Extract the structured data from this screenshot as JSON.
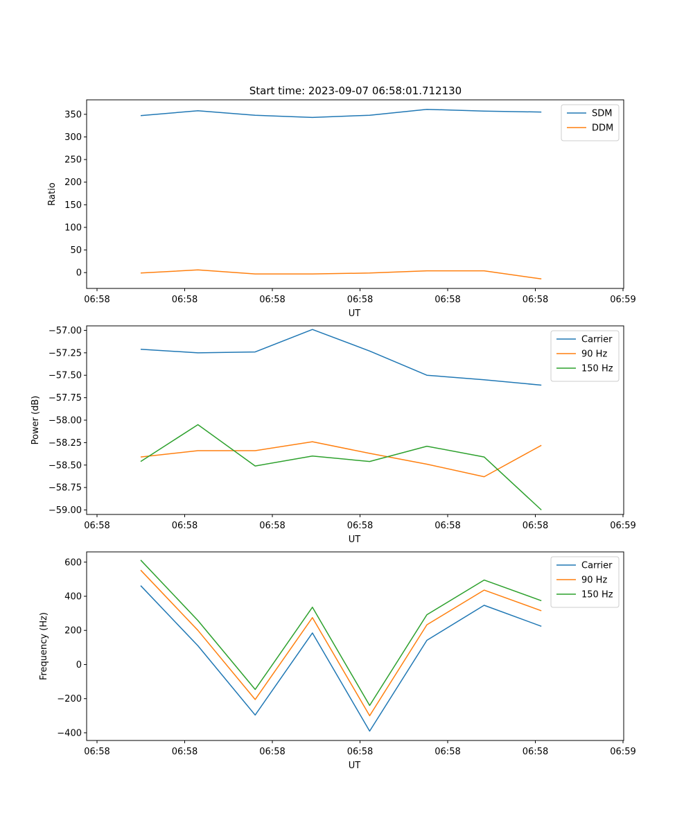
{
  "figure_title": "Start time: 2023-09-07 06:58:01.712130",
  "chart_data": [
    {
      "type": "line",
      "title": "Start time: 2023-09-07 06:58:01.712130",
      "xlabel": "UT",
      "ylabel": "Ratio",
      "x_tick_labels": [
        "06:58",
        "06:58",
        "06:58",
        "06:58",
        "06:58",
        "06:58",
        "06:59"
      ],
      "x": [
        1,
        2,
        3,
        4,
        5,
        6,
        7,
        8
      ],
      "xlim": [
        0.28,
        9.37
      ],
      "ylim": [
        -35,
        382
      ],
      "y_ticks": [
        0,
        50,
        100,
        150,
        200,
        250,
        300,
        350
      ],
      "y_tick_labels": [
        "0",
        "50",
        "100",
        "150",
        "200",
        "250",
        "300",
        "350"
      ],
      "legend_position": "top-right",
      "series": [
        {
          "name": "SDM",
          "color": "#1f77b4",
          "values": [
            347,
            358,
            348,
            343,
            348,
            361,
            357,
            355
          ]
        },
        {
          "name": "DDM",
          "color": "#ff7f0e",
          "values": [
            -1,
            6,
            -3,
            -3,
            -1,
            4,
            4,
            -14
          ]
        }
      ]
    },
    {
      "type": "line",
      "title": "",
      "xlabel": "UT",
      "ylabel": "Power (dB)",
      "x_tick_labels": [
        "06:58",
        "06:58",
        "06:58",
        "06:58",
        "06:58",
        "06:58",
        "06:59"
      ],
      "x": [
        1,
        2,
        3,
        4,
        5,
        6,
        7,
        8
      ],
      "xlim": [
        0.28,
        9.37
      ],
      "ylim": [
        -59.05,
        -56.95
      ],
      "y_ticks": [
        -57.0,
        -57.25,
        -57.5,
        -57.75,
        -58.0,
        -58.25,
        -58.5,
        -58.75,
        -59.0
      ],
      "y_tick_labels": [
        "−57.00",
        "−57.25",
        "−57.50",
        "−57.75",
        "−58.00",
        "−58.25",
        "−58.50",
        "−58.75",
        "−59.00"
      ],
      "legend_position": "top-right",
      "series": [
        {
          "name": "Carrier",
          "color": "#1f77b4",
          "values": [
            -57.21,
            -57.25,
            -57.24,
            -56.99,
            -57.23,
            -57.5,
            -57.55,
            -57.61
          ]
        },
        {
          "name": "90 Hz",
          "color": "#ff7f0e",
          "values": [
            -58.41,
            -58.34,
            -58.34,
            -58.24,
            -58.37,
            -58.49,
            -58.63,
            -58.28
          ]
        },
        {
          "name": "150 Hz",
          "color": "#2ca02c",
          "values": [
            -58.46,
            -58.05,
            -58.51,
            -58.4,
            -58.46,
            -58.29,
            -58.41,
            -59.0
          ]
        }
      ]
    },
    {
      "type": "line",
      "title": "",
      "xlabel": "UT",
      "ylabel": "Frequency (Hz)",
      "x_tick_labels": [
        "06:58",
        "06:58",
        "06:58",
        "06:58",
        "06:58",
        "06:58",
        "06:59"
      ],
      "x": [
        1,
        2,
        3,
        4,
        5,
        6,
        7,
        8
      ],
      "xlim": [
        0.28,
        9.37
      ],
      "ylim": [
        -445,
        660
      ],
      "y_ticks": [
        -400,
        -200,
        0,
        200,
        400,
        600
      ],
      "y_tick_labels": [
        "−400",
        "−200",
        "0",
        "200",
        "400",
        "600"
      ],
      "legend_position": "top-right",
      "series": [
        {
          "name": "Carrier",
          "color": "#1f77b4",
          "values": [
            462,
            110,
            -296,
            185,
            -390,
            142,
            347,
            224
          ]
        },
        {
          "name": "90 Hz",
          "color": "#ff7f0e",
          "values": [
            553,
            200,
            -205,
            275,
            -300,
            233,
            436,
            315
          ]
        },
        {
          "name": "150 Hz",
          "color": "#2ca02c",
          "values": [
            612,
            258,
            -146,
            336,
            -240,
            292,
            495,
            374
          ]
        }
      ]
    }
  ]
}
